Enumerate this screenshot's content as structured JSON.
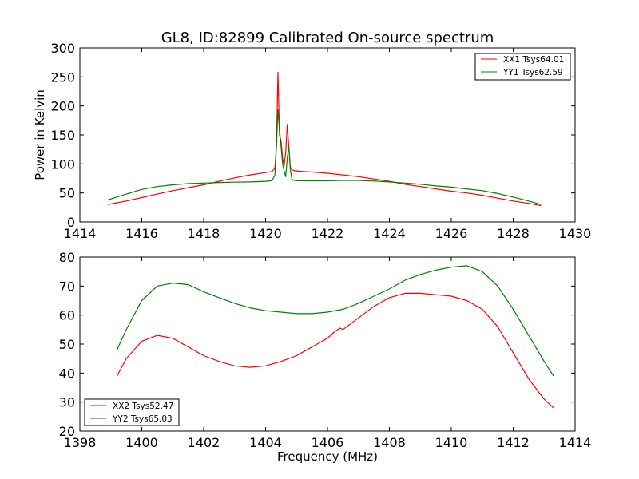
{
  "figure": {
    "title": "GL8, ID:82899 Calibrated On-source spectrum",
    "xlabel": "Frequency (MHz)",
    "ylabel_top": "Power in Kelvin"
  },
  "chart_data": [
    {
      "type": "line",
      "title": "GL8, ID:82899 Calibrated On-source spectrum",
      "xlabel": "",
      "ylabel": "Power in Kelvin",
      "xlim": [
        1414,
        1430
      ],
      "ylim": [
        0,
        300
      ],
      "xticks": [
        "1414",
        "1416",
        "1418",
        "1420",
        "1422",
        "1424",
        "1426",
        "1428",
        "1430"
      ],
      "yticks": [
        "0",
        "50",
        "100",
        "150",
        "200",
        "250",
        "300"
      ],
      "grid": false,
      "legend": "top-right",
      "series": [
        {
          "name": "XX1 Tsys64.01",
          "color": "#ff0000",
          "x": [
            1414.9,
            1415.5,
            1416.0,
            1416.5,
            1417.0,
            1417.5,
            1418.0,
            1418.5,
            1419.0,
            1419.5,
            1420.0,
            1420.2,
            1420.3,
            1420.35,
            1420.4,
            1420.45,
            1420.5,
            1420.55,
            1420.6,
            1420.65,
            1420.7,
            1420.75,
            1420.8,
            1420.85,
            1420.9,
            1420.95,
            1421.0,
            1421.2,
            1421.5,
            1422.0,
            1422.5,
            1423.0,
            1423.5,
            1424.0,
            1424.5,
            1425.0,
            1425.5,
            1426.0,
            1426.5,
            1427.0,
            1427.5,
            1428.0,
            1428.5,
            1428.9
          ],
          "values": [
            30,
            36,
            42,
            48,
            54,
            59,
            64,
            70,
            76,
            81,
            85,
            87,
            92,
            130,
            258,
            150,
            140,
            110,
            97,
            120,
            168,
            130,
            95,
            90,
            89,
            88,
            88,
            87,
            86,
            84,
            81,
            78,
            74,
            70,
            65,
            61,
            57,
            53,
            50,
            46,
            41,
            36,
            32,
            28
          ]
        },
        {
          "name": "YY1 Tsys62.59",
          "color": "#008000",
          "x": [
            1414.9,
            1415.5,
            1416.0,
            1416.5,
            1417.0,
            1417.5,
            1418.0,
            1418.5,
            1419.0,
            1419.5,
            1420.0,
            1420.2,
            1420.3,
            1420.35,
            1420.4,
            1420.45,
            1420.5,
            1420.55,
            1420.6,
            1420.65,
            1420.7,
            1420.75,
            1420.8,
            1420.85,
            1420.9,
            1420.95,
            1421.0,
            1421.2,
            1421.5,
            1422.0,
            1422.5,
            1423.0,
            1423.5,
            1424.0,
            1424.5,
            1425.0,
            1425.5,
            1426.0,
            1426.5,
            1427.0,
            1427.5,
            1428.0,
            1428.5,
            1428.9
          ],
          "values": [
            38,
            48,
            56,
            61,
            64,
            66,
            67,
            68,
            68.5,
            69,
            70,
            71,
            80,
            130,
            193,
            160,
            130,
            100,
            88,
            78,
            110,
            130,
            90,
            74,
            72,
            71.5,
            71,
            71,
            71,
            71,
            71.5,
            71.5,
            70.5,
            69,
            67,
            65,
            62,
            60,
            57,
            54,
            49,
            43,
            36,
            30
          ]
        }
      ]
    },
    {
      "type": "line",
      "title": "",
      "xlabel": "Frequency (MHz)",
      "ylabel": "",
      "xlim": [
        1398,
        1414
      ],
      "ylim": [
        20,
        80
      ],
      "xticks": [
        "1398",
        "1400",
        "1402",
        "1404",
        "1406",
        "1408",
        "1410",
        "1412",
        "1414"
      ],
      "yticks": [
        "20",
        "30",
        "40",
        "50",
        "60",
        "70",
        "80"
      ],
      "grid": false,
      "legend": "bottom-left",
      "series": [
        {
          "name": "XX2 Tsys52.47",
          "color": "#ff0000",
          "x": [
            1399.2,
            1399.5,
            1400.0,
            1400.5,
            1401.0,
            1401.5,
            1402.0,
            1402.5,
            1403.0,
            1403.5,
            1404.0,
            1404.5,
            1405.0,
            1405.5,
            1406.0,
            1406.2,
            1406.4,
            1406.5,
            1407.0,
            1407.5,
            1408.0,
            1408.5,
            1409.0,
            1409.5,
            1410.0,
            1410.5,
            1411.0,
            1411.5,
            1412.0,
            1412.5,
            1413.0,
            1413.3
          ],
          "values": [
            39,
            45,
            51,
            53,
            52,
            49,
            46,
            44,
            42.5,
            42,
            42.5,
            44,
            46,
            49,
            52,
            54,
            55.5,
            55,
            59,
            63,
            66,
            67.5,
            67.5,
            67,
            66.5,
            65,
            62,
            56,
            47,
            38,
            31,
            28
          ]
        },
        {
          "name": "YY2 Tsys65.03",
          "color": "#008000",
          "x": [
            1399.2,
            1399.5,
            1400.0,
            1400.5,
            1401.0,
            1401.5,
            1402.0,
            1402.5,
            1403.0,
            1403.5,
            1404.0,
            1404.5,
            1405.0,
            1405.5,
            1406.0,
            1406.5,
            1407.0,
            1407.5,
            1408.0,
            1408.5,
            1409.0,
            1409.5,
            1410.0,
            1410.5,
            1411.0,
            1411.5,
            1412.0,
            1412.5,
            1413.0,
            1413.3
          ],
          "values": [
            48,
            55,
            65,
            70,
            71,
            70.5,
            68,
            66,
            64,
            62.5,
            61.5,
            61,
            60.5,
            60.5,
            61,
            62,
            64,
            66.5,
            69,
            72,
            74,
            75.5,
            76.5,
            77,
            75,
            70,
            62,
            53,
            44,
            39
          ]
        }
      ]
    }
  ]
}
